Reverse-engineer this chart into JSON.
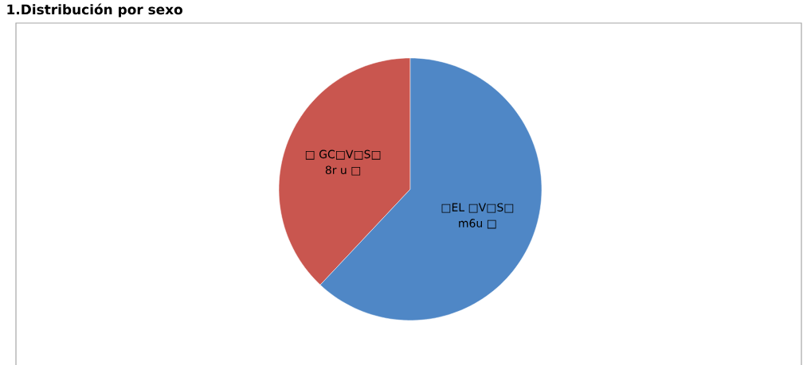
{
  "chart_data": {
    "type": "pie",
    "title": "1.Distribución por sexo",
    "categories": [
      "□ GC□V□S□",
      "□EL □V□S□"
    ],
    "annotations": [
      "8r u □",
      "m6u □"
    ],
    "values": [
      38,
      62
    ],
    "colors": [
      "#c9564f",
      "#4f87c6"
    ]
  }
}
